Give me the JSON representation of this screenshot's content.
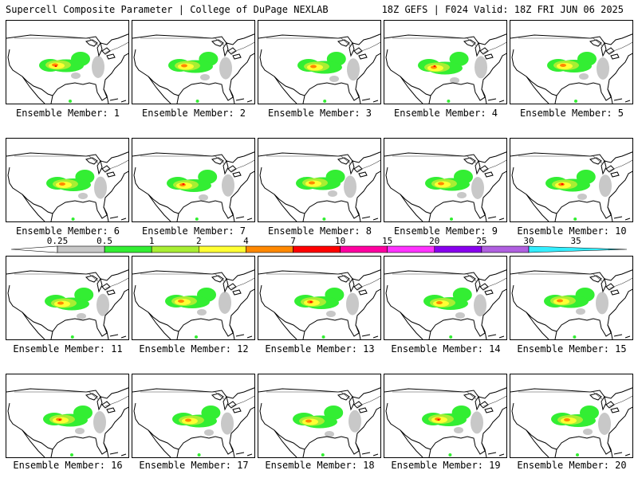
{
  "header": {
    "title_left": "Supercell Composite Parameter | College of DuPage NEXLAB",
    "title_right": "18Z GEFS | F024 Valid: 18Z FRI JUN 06 2025"
  },
  "panel_caption_prefix": "Ensemble Member:",
  "members": [
    "1",
    "2",
    "3",
    "4",
    "5",
    "6",
    "7",
    "8",
    "9",
    "10",
    "11",
    "12",
    "13",
    "14",
    "15",
    "16",
    "17",
    "18",
    "19",
    "20"
  ],
  "colorbar": {
    "tick_labels": [
      "0.25",
      "0.5",
      "1",
      "2",
      "4",
      "7",
      "10",
      "15",
      "20",
      "25",
      "30",
      "35"
    ],
    "colors": [
      "#ffffff",
      "#c8c8c8",
      "#33ee33",
      "#a8ee33",
      "#ffff33",
      "#ff8800",
      "#ff0000",
      "#ff00a0",
      "#ff33ff",
      "#8800ee",
      "#b060e0",
      "#33eeff"
    ]
  },
  "map_colors": {
    "land": "#ffffff",
    "coast": "#000000",
    "border": "#444444",
    "grey": "#c8c8c8",
    "green": "#33ee33",
    "lime": "#a8ee33",
    "yellow": "#ffff33",
    "orange": "#ff8800",
    "red": "#ff0000"
  }
}
